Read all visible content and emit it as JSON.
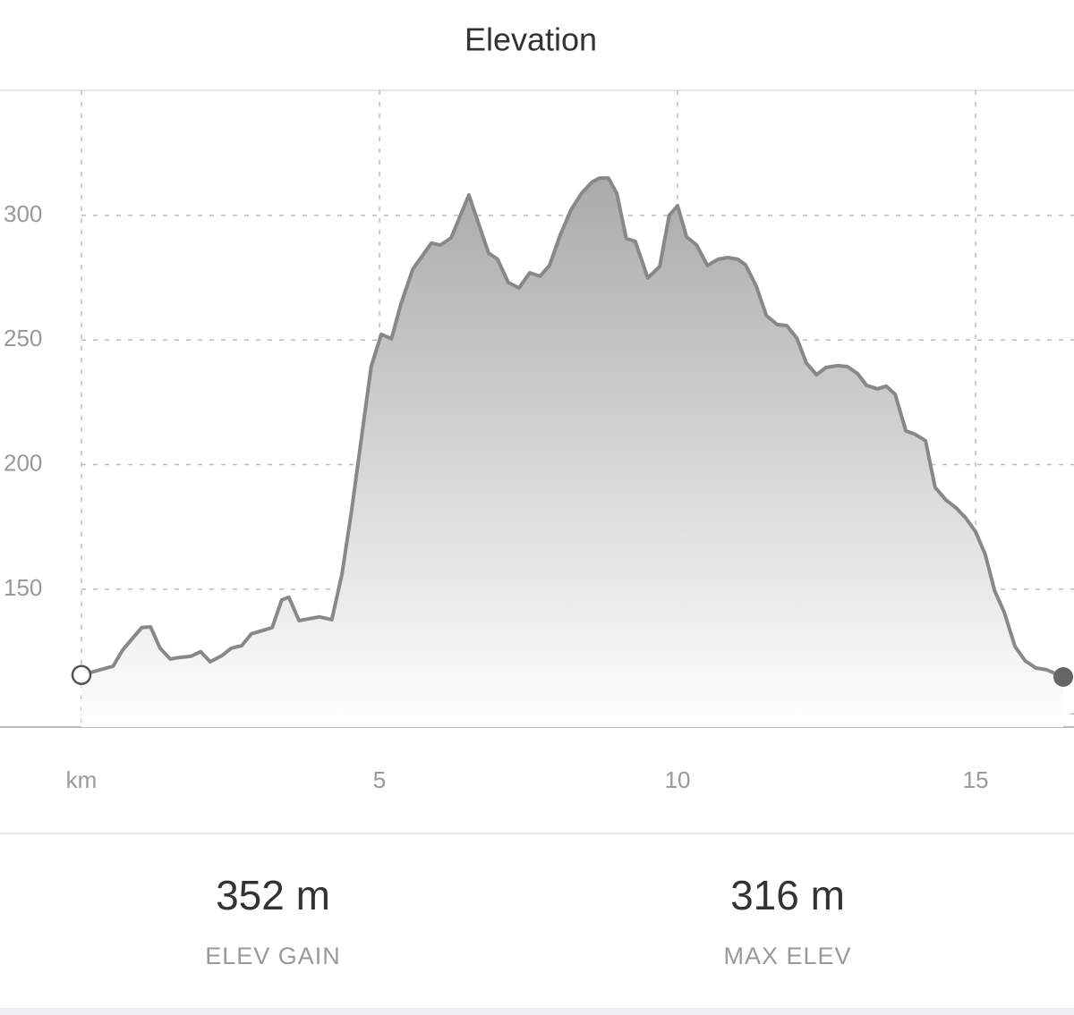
{
  "chart_data": {
    "type": "area",
    "title": "Elevation",
    "x": [
      0,
      0.53,
      0.69,
      1.01,
      1.16,
      1.32,
      1.49,
      1.67,
      1.83,
      2.0,
      2.16,
      2.36,
      2.51,
      2.69,
      2.85,
      3.2,
      3.36,
      3.48,
      3.65,
      3.99,
      4.2,
      4.37,
      4.53,
      4.86,
      5.03,
      5.2,
      5.36,
      5.56,
      5.87,
      6.02,
      6.2,
      6.5,
      6.83,
      6.98,
      7.16,
      7.34,
      7.52,
      7.69,
      7.85,
      8.03,
      8.21,
      8.39,
      8.56,
      8.69,
      8.84,
      8.98,
      9.14,
      9.29,
      9.5,
      9.7,
      9.86,
      10.0,
      10.15,
      10.32,
      10.5,
      10.68,
      10.84,
      11.01,
      11.14,
      11.32,
      11.49,
      11.67,
      11.83,
      12.0,
      12.16,
      12.33,
      12.49,
      12.69,
      12.85,
      13.02,
      13.17,
      13.35,
      13.5,
      13.65,
      13.83,
      13.99,
      14.16,
      14.32,
      14.5,
      14.67,
      14.83,
      15.0,
      15.16,
      15.32,
      15.48,
      15.66,
      15.83,
      16.01,
      16.19,
      16.47
    ],
    "values": [
      115.6,
      119.1,
      125.6,
      134.6,
      134.9,
      126.3,
      122.0,
      122.7,
      123.1,
      124.9,
      120.9,
      123.4,
      126.3,
      127.4,
      132.1,
      134.6,
      145.7,
      146.8,
      137.4,
      138.9,
      137.8,
      156.1,
      181.2,
      239.3,
      252.3,
      250.5,
      264.5,
      278.5,
      288.9,
      288.1,
      291.0,
      308.2,
      284.9,
      282.4,
      273.1,
      270.9,
      277.0,
      275.6,
      279.9,
      292.1,
      302.1,
      308.9,
      313.3,
      315.0,
      315.0,
      308.9,
      290.7,
      289.6,
      274.9,
      279.5,
      300.0,
      303.9,
      291.4,
      288.1,
      279.9,
      282.4,
      283.1,
      282.4,
      280.2,
      271.6,
      259.8,
      256.2,
      255.8,
      250.8,
      240.8,
      236.1,
      239.0,
      239.7,
      239.3,
      236.5,
      231.8,
      230.4,
      231.5,
      228.2,
      213.5,
      212.1,
      209.6,
      190.9,
      185.9,
      182.7,
      178.7,
      173.0,
      164.0,
      149.3,
      140.7,
      127.0,
      121.3,
      118.4,
      117.7,
      114.8
    ],
    "color": "#888888",
    "fill_color": "#aaaaaa",
    "xlim": [
      0,
      16.65
    ],
    "xticks": [
      {
        "value": 0,
        "label": "km"
      },
      5,
      10,
      15
    ],
    "ylim": [
      94.7,
      350.2
    ],
    "yticks": [
      {
        "value": 100,
        "label": null
      },
      150,
      200,
      250,
      300
    ],
    "grid": true
  },
  "stats": [
    {
      "value": "352 m",
      "label": "ELEV GAIN"
    },
    {
      "value": "316 m",
      "label": "MAX ELEV"
    }
  ]
}
